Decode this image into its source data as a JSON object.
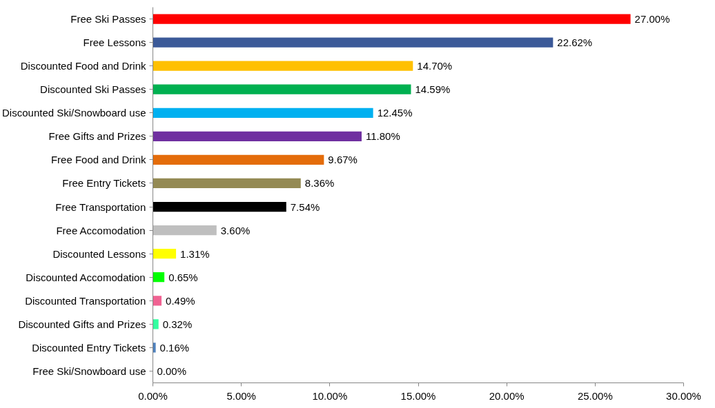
{
  "chart_data": {
    "type": "bar",
    "orientation": "horizontal",
    "categories": [
      "Free Ski Passes",
      "Free Lessons",
      "Discounted Food and Drink",
      "Discounted Ski Passes",
      "Discounted Ski/Snowboard use",
      "Free Gifts and Prizes",
      "Free Food and Drink",
      "Free Entry Tickets",
      "Free Transportation",
      "Free Accomodation",
      "Discounted Lessons",
      "Discounted Accomodation",
      "Discounted Transportation",
      "Discounted Gifts and Prizes",
      "Discounted Entry Tickets",
      "Free Ski/Snowboard use"
    ],
    "values": [
      27.0,
      22.62,
      14.7,
      14.59,
      12.45,
      11.8,
      9.67,
      8.36,
      7.54,
      3.6,
      1.31,
      0.65,
      0.49,
      0.32,
      0.16,
      0.0
    ],
    "value_labels": [
      "27.00%",
      "22.62%",
      "14.70%",
      "14.59%",
      "12.45%",
      "11.80%",
      "9.67%",
      "8.36%",
      "7.54%",
      "3.60%",
      "1.31%",
      "0.65%",
      "0.49%",
      "0.32%",
      "0.16%",
      "0.00%"
    ],
    "colors": [
      "#ff0000",
      "#3b5998",
      "#ffc000",
      "#00b050",
      "#00b0f0",
      "#7030a0",
      "#e46c0a",
      "#948a54",
      "#000000",
      "#bfbfbf",
      "#ffff00",
      "#00ff00",
      "#f06292",
      "#33ffa0",
      "#4f81bd",
      "#ffffff"
    ],
    "xlim": [
      0,
      30
    ],
    "xticks": [
      {
        "value": 0,
        "label": "0.00%"
      },
      {
        "value": 5,
        "label": "5.00%"
      },
      {
        "value": 10,
        "label": "10.00%"
      },
      {
        "value": 15,
        "label": "15.00%"
      },
      {
        "value": 20,
        "label": "20.00%"
      },
      {
        "value": 25,
        "label": "25.00%"
      },
      {
        "value": 30,
        "label": "30.00%"
      }
    ],
    "grid": false
  }
}
